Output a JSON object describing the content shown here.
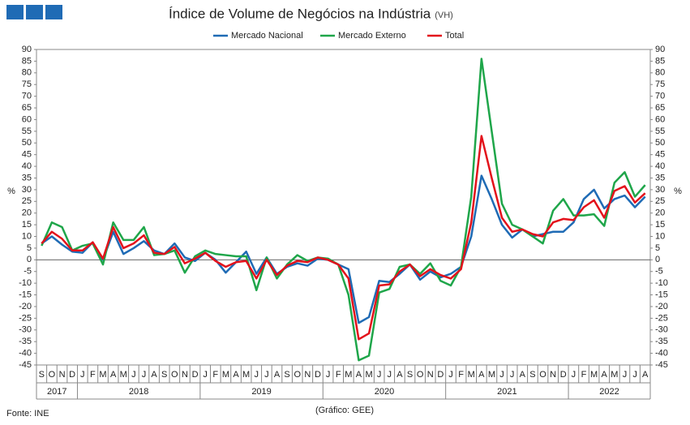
{
  "chart_data": {
    "type": "line",
    "title": "Índice de Volume de Negócios na Indústria",
    "subtitle": "(VH)",
    "y_label": "%",
    "y2_label": "%",
    "source": "Fonte: INE",
    "credit": "(Gráfico: GEE)",
    "categories": [
      "S",
      "O",
      "N",
      "D",
      "J",
      "F",
      "M",
      "A",
      "M",
      "J",
      "J",
      "A",
      "S",
      "O",
      "N",
      "D",
      "J",
      "F",
      "M",
      "A",
      "M",
      "J",
      "J",
      "A",
      "S",
      "O",
      "N",
      "D",
      "J",
      "F",
      "M",
      "A",
      "M",
      "J",
      "J",
      "A",
      "S",
      "O",
      "N",
      "D",
      "J",
      "F",
      "M",
      "A",
      "M",
      "J",
      "J",
      "A",
      "S",
      "O",
      "N",
      "D",
      "J",
      "F",
      "M",
      "A",
      "M",
      "J",
      "J",
      "A"
    ],
    "years": [
      "2017",
      "2018",
      "2019",
      "2020",
      "2021",
      "2022"
    ],
    "ylim": [
      -45,
      90
    ],
    "yticks": [
      -45,
      -40,
      -35,
      -30,
      -25,
      -20,
      -15,
      -10,
      -5,
      0,
      5,
      10,
      15,
      20,
      25,
      30,
      35,
      40,
      45,
      50,
      55,
      60,
      65,
      70,
      75,
      80,
      85,
      90
    ],
    "y2lim": [
      -45,
      90
    ],
    "y2ticks": [
      -45,
      -40,
      -35,
      -30,
      -25,
      -20,
      -15,
      -10,
      -5,
      0,
      5,
      10,
      15,
      20,
      25,
      30,
      35,
      40,
      45,
      50,
      55,
      60,
      65,
      70,
      75,
      80,
      85,
      90
    ],
    "legend": "top",
    "series": [
      {
        "name": "Mercado Nacional",
        "color": "#1f6bb5",
        "values": [
          7,
          10,
          6.5,
          3.5,
          3,
          7.5,
          0,
          12,
          2.5,
          5,
          8,
          4,
          2.5,
          7,
          1,
          -0.5,
          3,
          0,
          -5.5,
          -1,
          3.5,
          -6,
          1,
          -6,
          -3,
          -1.5,
          -2.5,
          0.5,
          0,
          -2,
          -4,
          -27,
          -24.5,
          -9,
          -9.5,
          -6,
          -2,
          -8.5,
          -5,
          -7.5,
          -6,
          -3,
          10,
          36,
          26,
          15,
          9.5,
          13,
          10,
          11,
          12,
          12,
          16,
          26,
          30,
          22,
          26,
          27.5,
          22.5,
          27
        ]
      },
      {
        "name": "Mercado Externo",
        "color": "#1fa64a",
        "values": [
          6,
          16,
          14,
          4,
          6,
          7,
          -2,
          16,
          8.5,
          8.5,
          14,
          2,
          2.5,
          4,
          -5.5,
          1.5,
          4,
          2.5,
          2,
          1.5,
          1.5,
          -13,
          1,
          -8,
          -2,
          2,
          -0.5,
          1,
          0.5,
          -2,
          -15,
          -43,
          -41,
          -14,
          -12.5,
          -3,
          -2,
          -6,
          -1.5,
          -9,
          -11,
          -3,
          27,
          86,
          55,
          24,
          15,
          13,
          10,
          7,
          21,
          26,
          19,
          19,
          19.5,
          14.5,
          33,
          37.5,
          27,
          32
        ]
      },
      {
        "name": "Total",
        "color": "#e3121b",
        "values": [
          7,
          12,
          9,
          4,
          4,
          7.5,
          0.5,
          14,
          5,
          7,
          10.5,
          3,
          2.5,
          5.5,
          -1.5,
          0.5,
          3,
          -0.5,
          -3,
          -1,
          -0.5,
          -8,
          0,
          -6.5,
          -2.5,
          -0.5,
          -1,
          1,
          0,
          -2,
          -8,
          -34,
          -31.5,
          -11,
          -10.5,
          -5,
          -2,
          -7,
          -4,
          -6.5,
          -8,
          -4,
          16,
          53,
          35,
          18,
          12,
          13,
          11,
          10,
          16,
          17.5,
          17,
          22.5,
          25.5,
          18,
          29.5,
          31.5,
          24.5,
          28.5
        ]
      }
    ]
  }
}
